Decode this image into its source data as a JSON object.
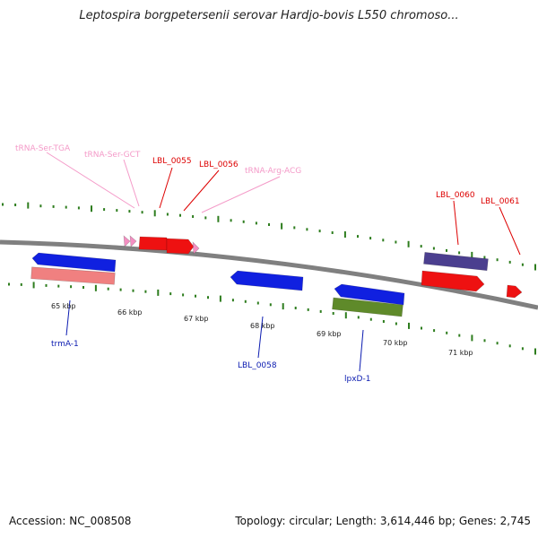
{
  "title": "Leptospira borgpetersenii serovar Hardjo-bovis L550 chromoso...",
  "footer": {
    "accession": "Accession: NC_008508",
    "stats": "Topology: circular; Length: 3,614,446 bp; Genes: 2,745"
  },
  "colors": {
    "backbone": "#808080",
    "tick": "#2e7d1e",
    "trna": "#f48fc2",
    "red": "#ee1111",
    "blue": "#1020e0",
    "salmon": "#f08080",
    "purple": "#4b3f8f",
    "olive": "#5f8a2a",
    "label_red": "#dd0000",
    "label_pink": "#f49ac8",
    "label_blue": "#0a1ab0"
  },
  "scale_labels": [
    "65 kbp",
    "66 kbp",
    "67 kbp",
    "68 kbp",
    "69 kbp",
    "70 kbp",
    "71 kbp"
  ],
  "feature_labels": {
    "trna_ser_tga": "tRNA-Ser-TGA",
    "trna_ser_gct": "tRNA-Ser-GCT",
    "lbl_0055": "LBL_0055",
    "lbl_0056": "LBL_0056",
    "trna_arg_acg": "tRNA-Arg-ACG",
    "lbl_0060": "LBL_0060",
    "lbl_0061": "LBL_0061",
    "trma_1": "trmA-1",
    "lbl_0058": "LBL_0058",
    "lpxd_1": "lpxD-1"
  }
}
